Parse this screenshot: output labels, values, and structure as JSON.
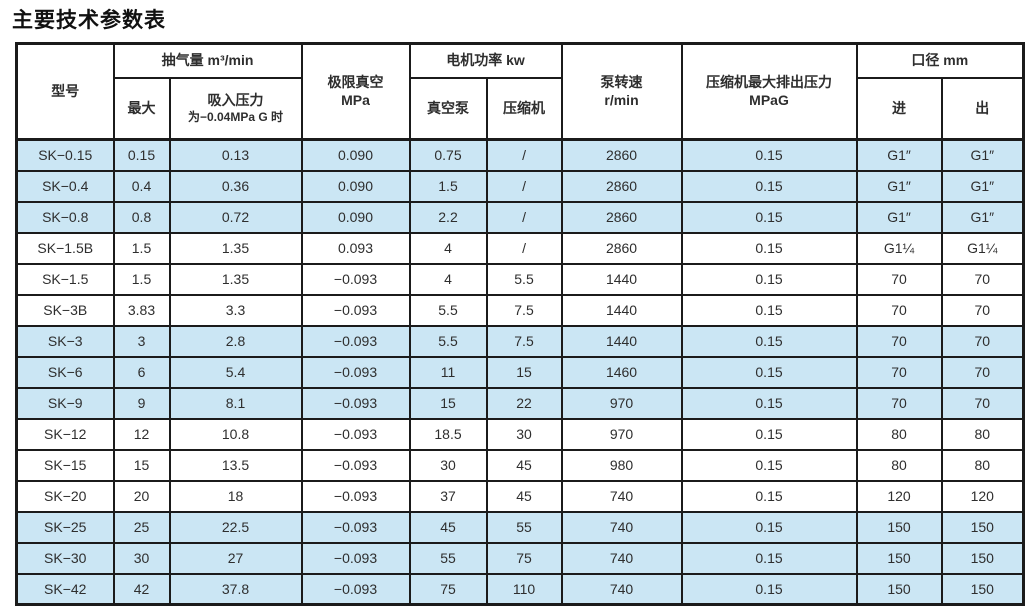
{
  "page": {
    "title": "主要技术参数表"
  },
  "table": {
    "header": {
      "model": "型号",
      "capacity_group": "抽气量 m³/min",
      "capacity_max": "最大",
      "capacity_suction_line1": "吸入压力",
      "capacity_suction_line2": "为−0.04MPa G 时",
      "ultimate_vacuum_line1": "极限真空",
      "ultimate_vacuum_line2": "MPa",
      "motor_power_group": "电机功率 kw",
      "motor_vacuum_pump": "真空泵",
      "motor_compressor": "压缩机",
      "pump_speed_line1": "泵转速",
      "pump_speed_line2": "r/min",
      "discharge_line1": "压缩机最大排出压力",
      "discharge_line2": "MPaG",
      "bore_group": "口径 mm",
      "bore_in": "进",
      "bore_out": "出"
    },
    "rows": [
      {
        "shaded": true,
        "cells": [
          "SK−0.15",
          "0.15",
          "0.13",
          "0.090",
          "0.75",
          "/",
          "2860",
          "0.15",
          "G1″",
          "G1″"
        ]
      },
      {
        "shaded": true,
        "cells": [
          "SK−0.4",
          "0.4",
          "0.36",
          "0.090",
          "1.5",
          "/",
          "2860",
          "0.15",
          "G1″",
          "G1″"
        ]
      },
      {
        "shaded": true,
        "cells": [
          "SK−0.8",
          "0.8",
          "0.72",
          "0.090",
          "2.2",
          "/",
          "2860",
          "0.15",
          "G1″",
          "G1″"
        ]
      },
      {
        "shaded": false,
        "cells": [
          "SK−1.5B",
          "1.5",
          "1.35",
          "0.093",
          "4",
          "/",
          "2860",
          "0.15",
          "G1¼",
          "G1¼"
        ]
      },
      {
        "shaded": false,
        "cells": [
          "SK−1.5",
          "1.5",
          "1.35",
          "−0.093",
          "4",
          "5.5",
          "1440",
          "0.15",
          "70",
          "70"
        ]
      },
      {
        "shaded": false,
        "cells": [
          "SK−3B",
          "3.83",
          "3.3",
          "−0.093",
          "5.5",
          "7.5",
          "1440",
          "0.15",
          "70",
          "70"
        ]
      },
      {
        "shaded": true,
        "cells": [
          "SK−3",
          "3",
          "2.8",
          "−0.093",
          "5.5",
          "7.5",
          "1440",
          "0.15",
          "70",
          "70"
        ]
      },
      {
        "shaded": true,
        "cells": [
          "SK−6",
          "6",
          "5.4",
          "−0.093",
          "11",
          "15",
          "1460",
          "0.15",
          "70",
          "70"
        ]
      },
      {
        "shaded": true,
        "cells": [
          "SK−9",
          "9",
          "8.1",
          "−0.093",
          "15",
          "22",
          "970",
          "0.15",
          "70",
          "70"
        ]
      },
      {
        "shaded": false,
        "cells": [
          "SK−12",
          "12",
          "10.8",
          "−0.093",
          "18.5",
          "30",
          "970",
          "0.15",
          "80",
          "80"
        ]
      },
      {
        "shaded": false,
        "cells": [
          "SK−15",
          "15",
          "13.5",
          "−0.093",
          "30",
          "45",
          "980",
          "0.15",
          "80",
          "80"
        ]
      },
      {
        "shaded": false,
        "cells": [
          "SK−20",
          "20",
          "18",
          "−0.093",
          "37",
          "45",
          "740",
          "0.15",
          "120",
          "120"
        ]
      },
      {
        "shaded": true,
        "cells": [
          "SK−25",
          "25",
          "22.5",
          "−0.093",
          "45",
          "55",
          "740",
          "0.15",
          "150",
          "150"
        ]
      },
      {
        "shaded": true,
        "cells": [
          "SK−30",
          "30",
          "27",
          "−0.093",
          "55",
          "75",
          "740",
          "0.15",
          "150",
          "150"
        ]
      },
      {
        "shaded": true,
        "cells": [
          "SK−42",
          "42",
          "37.8",
          "−0.093",
          "75",
          "110",
          "740",
          "0.15",
          "150",
          "150"
        ]
      }
    ]
  },
  "colors": {
    "row_shaded": "#cbe6f4",
    "border": "#1b1b1b",
    "text": "#2e2e2e",
    "title": "#111111",
    "slash": "#8fa6b5"
  }
}
